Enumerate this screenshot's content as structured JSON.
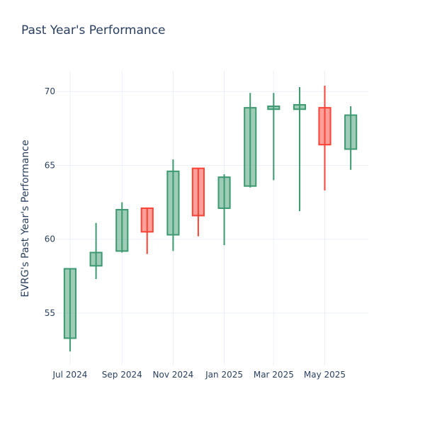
{
  "chart_data": {
    "type": "candlestick",
    "title": "Past Year's Performance",
    "ylabel": "EVRG's Past Year's Performance",
    "xlabel": "",
    "ylim": [
      51.5,
      71.4
    ],
    "x_range": [
      "2024-06-15",
      "2025-06-22"
    ],
    "y_ticks": [
      55,
      60,
      65,
      70
    ],
    "x_ticks": [
      {
        "date": "2024-07-01",
        "label": "Jul 2024"
      },
      {
        "date": "2024-09-01",
        "label": "Sep 2024"
      },
      {
        "date": "2024-11-01",
        "label": "Nov 2024"
      },
      {
        "date": "2025-01-01",
        "label": "Jan 2025"
      },
      {
        "date": "2025-03-01",
        "label": "Mar 2025"
      },
      {
        "date": "2025-05-01",
        "label": "May 2025"
      }
    ],
    "grid": true,
    "increasing_color": "#3d9970",
    "decreasing_color": "#ff4136",
    "candles": [
      {
        "date": "2024-07-01",
        "open": 53.3,
        "high": 58.0,
        "low": 52.4,
        "close": 58.0
      },
      {
        "date": "2024-08-01",
        "open": 58.2,
        "high": 61.1,
        "low": 57.3,
        "close": 59.1
      },
      {
        "date": "2024-09-01",
        "open": 59.2,
        "high": 62.5,
        "low": 59.1,
        "close": 62.0
      },
      {
        "date": "2024-10-01",
        "open": 62.1,
        "high": 62.1,
        "low": 59.0,
        "close": 60.5
      },
      {
        "date": "2024-11-01",
        "open": 60.3,
        "high": 65.4,
        "low": 59.2,
        "close": 64.6
      },
      {
        "date": "2024-12-01",
        "open": 64.8,
        "high": 64.8,
        "low": 60.2,
        "close": 61.6
      },
      {
        "date": "2025-01-01",
        "open": 62.1,
        "high": 64.4,
        "low": 59.6,
        "close": 64.2
      },
      {
        "date": "2025-02-01",
        "open": 63.6,
        "high": 69.9,
        "low": 63.5,
        "close": 68.9
      },
      {
        "date": "2025-03-01",
        "open": 68.8,
        "high": 69.9,
        "low": 64.0,
        "close": 69.0
      },
      {
        "date": "2025-04-01",
        "open": 68.8,
        "high": 70.3,
        "low": 61.9,
        "close": 69.1
      },
      {
        "date": "2025-05-01",
        "open": 68.9,
        "high": 70.4,
        "low": 63.3,
        "close": 66.4
      },
      {
        "date": "2025-06-01",
        "open": 66.1,
        "high": 69.0,
        "low": 64.7,
        "close": 68.4
      }
    ]
  }
}
